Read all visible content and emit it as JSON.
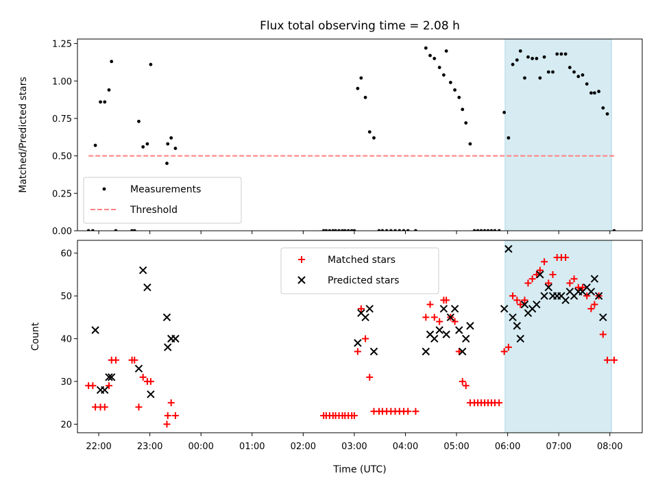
{
  "chart_data": [
    {
      "type": "scatter",
      "title": "Flux total observing time = 2.08 h",
      "xlabel": "",
      "ylabel": "Matched/Predicted stars",
      "ylim": [
        0,
        1.28
      ],
      "yticks": [
        0,
        0.25,
        0.5,
        0.75,
        1.0,
        1.25
      ],
      "ytick_labels": [
        "0.00",
        "0.25",
        "0.50",
        "0.75",
        "1.00",
        "1.25"
      ],
      "xlim": [
        "21:35",
        "08:38"
      ],
      "xticks": [
        "22:00",
        "23:00",
        "00:00",
        "01:00",
        "02:00",
        "03:00",
        "04:00",
        "05:00",
        "06:00",
        "07:00",
        "08:00"
      ],
      "highlight_span": {
        "start": "05:57",
        "end": "08:02",
        "color": "#add8e6"
      },
      "legend_position": "lower-left",
      "series": [
        {
          "name": "Measurements",
          "kind": "dot",
          "color": "#000000",
          "points": [
            [
              "21:48",
              0.0
            ],
            [
              "21:53",
              0.0
            ],
            [
              "21:56",
              0.57
            ],
            [
              "22:02",
              0.86
            ],
            [
              "22:07",
              0.86
            ],
            [
              "22:12",
              0.94
            ],
            [
              "22:15",
              1.13
            ],
            [
              "22:20",
              0.0
            ],
            [
              "22:39",
              0.0
            ],
            [
              "22:42",
              0.0
            ],
            [
              "22:47",
              0.73
            ],
            [
              "22:52",
              0.56
            ],
            [
              "22:57",
              0.58
            ],
            [
              "23:01",
              1.11
            ],
            [
              "23:20",
              0.45
            ],
            [
              "23:21",
              0.58
            ],
            [
              "23:25",
              0.62
            ],
            [
              "23:30",
              0.55
            ],
            [
              "02:24",
              0.0
            ],
            [
              "02:27",
              0.0
            ],
            [
              "02:31",
              0.0
            ],
            [
              "02:35",
              0.0
            ],
            [
              "02:38",
              0.0
            ],
            [
              "02:42",
              0.0
            ],
            [
              "02:46",
              0.0
            ],
            [
              "02:49",
              0.0
            ],
            [
              "02:53",
              0.0
            ],
            [
              "02:57",
              0.0
            ],
            [
              "03:00",
              0.0
            ],
            [
              "03:04",
              0.95
            ],
            [
              "03:08",
              1.02
            ],
            [
              "03:13",
              0.89
            ],
            [
              "03:18",
              0.66
            ],
            [
              "03:23",
              0.62
            ],
            [
              "03:29",
              0.0
            ],
            [
              "03:33",
              0.0
            ],
            [
              "03:38",
              0.0
            ],
            [
              "03:43",
              0.0
            ],
            [
              "03:48",
              0.0
            ],
            [
              "03:53",
              0.0
            ],
            [
              "03:58",
              0.0
            ],
            [
              "04:03",
              0.0
            ],
            [
              "04:12",
              0.0
            ],
            [
              "04:24",
              1.22
            ],
            [
              "04:29",
              1.17
            ],
            [
              "04:34",
              1.15
            ],
            [
              "04:40",
              1.09
            ],
            [
              "04:45",
              1.04
            ],
            [
              "04:48",
              1.2
            ],
            [
              "04:53",
              0.99
            ],
            [
              "04:58",
              0.94
            ],
            [
              "05:03",
              0.89
            ],
            [
              "05:07",
              0.81
            ],
            [
              "05:11",
              0.72
            ],
            [
              "05:16",
              0.58
            ],
            [
              "05:21",
              0.0
            ],
            [
              "05:25",
              0.0
            ],
            [
              "05:29",
              0.0
            ],
            [
              "05:33",
              0.0
            ],
            [
              "05:37",
              0.0
            ],
            [
              "05:41",
              0.0
            ],
            [
              "05:45",
              0.0
            ],
            [
              "05:50",
              0.0
            ],
            [
              "05:56",
              0.79
            ],
            [
              "06:01",
              0.62
            ],
            [
              "06:06",
              1.11
            ],
            [
              "06:11",
              1.14
            ],
            [
              "06:15",
              1.2
            ],
            [
              "06:20",
              1.02
            ],
            [
              "06:24",
              1.16
            ],
            [
              "06:29",
              1.15
            ],
            [
              "06:34",
              1.15
            ],
            [
              "06:38",
              1.02
            ],
            [
              "06:43",
              1.16
            ],
            [
              "06:48",
              1.06
            ],
            [
              "06:53",
              1.06
            ],
            [
              "06:58",
              1.18
            ],
            [
              "07:03",
              1.18
            ],
            [
              "07:08",
              1.18
            ],
            [
              "07:13",
              1.09
            ],
            [
              "07:18",
              1.06
            ],
            [
              "07:23",
              1.03
            ],
            [
              "07:28",
              1.04
            ],
            [
              "07:33",
              0.98
            ],
            [
              "07:38",
              0.92
            ],
            [
              "07:42",
              0.92
            ],
            [
              "07:47",
              0.93
            ],
            [
              "07:52",
              0.82
            ],
            [
              "07:57",
              0.78
            ],
            [
              "08:05",
              0.0
            ]
          ]
        },
        {
          "name": "Threshold",
          "kind": "dashed-line",
          "color": "#ff7f7f",
          "points": [
            [
              "21:48",
              0.5
            ],
            [
              "08:05",
              0.5
            ]
          ]
        }
      ]
    },
    {
      "type": "scatter",
      "title": "",
      "xlabel": "Time (UTC)",
      "ylabel": "Count",
      "ylim": [
        18,
        63
      ],
      "yticks": [
        20,
        30,
        40,
        50,
        60
      ],
      "ytick_labels": [
        "20",
        "30",
        "40",
        "50",
        "60"
      ],
      "xlim": [
        "21:35",
        "08:38"
      ],
      "xticks": [
        "22:00",
        "23:00",
        "00:00",
        "01:00",
        "02:00",
        "03:00",
        "04:00",
        "05:00",
        "06:00",
        "07:00",
        "08:00"
      ],
      "highlight_span": {
        "start": "05:57",
        "end": "08:02",
        "color": "#add8e6"
      },
      "legend_position": "upper-center",
      "series": [
        {
          "name": "Matched stars",
          "kind": "plus",
          "color": "#ff0000",
          "points": [
            [
              "21:48",
              29
            ],
            [
              "21:53",
              29
            ],
            [
              "21:56",
              24
            ],
            [
              "22:02",
              24
            ],
            [
              "22:07",
              24
            ],
            [
              "22:12",
              29
            ],
            [
              "22:15",
              35
            ],
            [
              "22:20",
              35
            ],
            [
              "22:39",
              35
            ],
            [
              "22:42",
              35
            ],
            [
              "22:47",
              24
            ],
            [
              "22:52",
              31
            ],
            [
              "22:57",
              30
            ],
            [
              "23:01",
              30
            ],
            [
              "23:20",
              20
            ],
            [
              "23:21",
              22
            ],
            [
              "23:25",
              25
            ],
            [
              "23:30",
              22
            ],
            [
              "02:24",
              22
            ],
            [
              "02:27",
              22
            ],
            [
              "02:31",
              22
            ],
            [
              "02:35",
              22
            ],
            [
              "02:38",
              22
            ],
            [
              "02:42",
              22
            ],
            [
              "02:46",
              22
            ],
            [
              "02:49",
              22
            ],
            [
              "02:53",
              22
            ],
            [
              "02:57",
              22
            ],
            [
              "03:00",
              22
            ],
            [
              "03:04",
              37
            ],
            [
              "03:08",
              47
            ],
            [
              "03:13",
              40
            ],
            [
              "03:18",
              31
            ],
            [
              "03:23",
              23
            ],
            [
              "03:29",
              23
            ],
            [
              "03:33",
              23
            ],
            [
              "03:38",
              23
            ],
            [
              "03:43",
              23
            ],
            [
              "03:48",
              23
            ],
            [
              "03:53",
              23
            ],
            [
              "03:58",
              23
            ],
            [
              "04:03",
              23
            ],
            [
              "04:12",
              23
            ],
            [
              "04:24",
              45
            ],
            [
              "04:29",
              48
            ],
            [
              "04:34",
              45
            ],
            [
              "04:40",
              44
            ],
            [
              "04:45",
              49
            ],
            [
              "04:48",
              49
            ],
            [
              "04:53",
              45
            ],
            [
              "04:58",
              44
            ],
            [
              "05:03",
              37
            ],
            [
              "05:07",
              30
            ],
            [
              "05:11",
              29
            ],
            [
              "05:16",
              25
            ],
            [
              "05:21",
              25
            ],
            [
              "05:25",
              25
            ],
            [
              "05:29",
              25
            ],
            [
              "05:33",
              25
            ],
            [
              "05:37",
              25
            ],
            [
              "05:41",
              25
            ],
            [
              "05:45",
              25
            ],
            [
              "05:50",
              25
            ],
            [
              "05:56",
              37
            ],
            [
              "06:01",
              38
            ],
            [
              "06:06",
              50
            ],
            [
              "06:11",
              49
            ],
            [
              "06:15",
              48
            ],
            [
              "06:20",
              49
            ],
            [
              "06:24",
              53
            ],
            [
              "06:29",
              54
            ],
            [
              "06:34",
              55
            ],
            [
              "06:38",
              56
            ],
            [
              "06:43",
              58
            ],
            [
              "06:48",
              53
            ],
            [
              "06:53",
              55
            ],
            [
              "06:58",
              59
            ],
            [
              "07:03",
              59
            ],
            [
              "07:08",
              59
            ],
            [
              "07:13",
              53
            ],
            [
              "07:18",
              54
            ],
            [
              "07:23",
              52
            ],
            [
              "07:28",
              52
            ],
            [
              "07:33",
              50
            ],
            [
              "07:38",
              47
            ],
            [
              "07:42",
              48
            ],
            [
              "07:47",
              50
            ],
            [
              "07:52",
              41
            ],
            [
              "07:57",
              35
            ],
            [
              "08:05",
              35
            ]
          ]
        },
        {
          "name": "Predicted stars",
          "kind": "x",
          "color": "#000000",
          "points": [
            [
              "21:56",
              42
            ],
            [
              "22:02",
              28
            ],
            [
              "22:07",
              28
            ],
            [
              "22:12",
              31
            ],
            [
              "22:15",
              31
            ],
            [
              "22:47",
              33
            ],
            [
              "22:52",
              56
            ],
            [
              "22:57",
              52
            ],
            [
              "23:01",
              27
            ],
            [
              "23:20",
              45
            ],
            [
              "23:21",
              38
            ],
            [
              "23:25",
              40
            ],
            [
              "23:30",
              40
            ],
            [
              "03:04",
              39
            ],
            [
              "03:08",
              46
            ],
            [
              "03:13",
              45
            ],
            [
              "03:18",
              47
            ],
            [
              "03:23",
              37
            ],
            [
              "04:24",
              37
            ],
            [
              "04:29",
              41
            ],
            [
              "04:34",
              40
            ],
            [
              "04:40",
              42
            ],
            [
              "04:45",
              47
            ],
            [
              "04:48",
              41
            ],
            [
              "04:53",
              45
            ],
            [
              "04:58",
              47
            ],
            [
              "05:03",
              42
            ],
            [
              "05:07",
              37
            ],
            [
              "05:11",
              40
            ],
            [
              "05:16",
              43
            ],
            [
              "05:56",
              47
            ],
            [
              "06:01",
              61
            ],
            [
              "06:06",
              45
            ],
            [
              "06:11",
              43
            ],
            [
              "06:15",
              40
            ],
            [
              "06:20",
              48
            ],
            [
              "06:24",
              46
            ],
            [
              "06:29",
              47
            ],
            [
              "06:34",
              48
            ],
            [
              "06:38",
              55
            ],
            [
              "06:43",
              50
            ],
            [
              "06:48",
              52
            ],
            [
              "06:53",
              50
            ],
            [
              "06:58",
              50
            ],
            [
              "07:03",
              50
            ],
            [
              "07:08",
              49
            ],
            [
              "07:13",
              51
            ],
            [
              "07:18",
              50
            ],
            [
              "07:23",
              51
            ],
            [
              "07:28",
              51
            ],
            [
              "07:33",
              52
            ],
            [
              "07:38",
              51
            ],
            [
              "07:42",
              54
            ],
            [
              "07:47",
              50
            ],
            [
              "07:52",
              45
            ]
          ]
        }
      ]
    }
  ]
}
